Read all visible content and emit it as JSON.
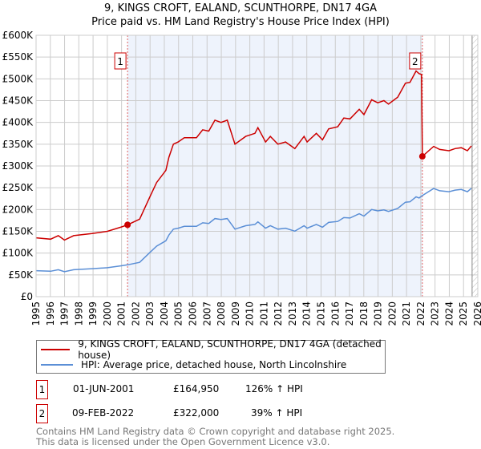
{
  "chart_data": {
    "type": "line",
    "title": "9, KINGS CROFT, EALAND, SCUNTHORPE, DN17 4GA",
    "subtitle": "Price paid vs. HM Land Registry's House Price Index (HPI)",
    "xlim": [
      1995,
      2026
    ],
    "ylim": [
      0,
      600000
    ],
    "x_ticks": [
      "1995",
      "1996",
      "1997",
      "1998",
      "1999",
      "2000",
      "2001",
      "2002",
      "2003",
      "2004",
      "2005",
      "2006",
      "2007",
      "2008",
      "2009",
      "2010",
      "2011",
      "2012",
      "2013",
      "2014",
      "2015",
      "2016",
      "2017",
      "2018",
      "2019",
      "2020",
      "2021",
      "2022",
      "2023",
      "2024",
      "2025",
      "2026"
    ],
    "y_ticks": [
      {
        "v": 0,
        "l": "£0"
      },
      {
        "v": 50000,
        "l": "£50K"
      },
      {
        "v": 100000,
        "l": "£100K"
      },
      {
        "v": 150000,
        "l": "£150K"
      },
      {
        "v": 200000,
        "l": "£200K"
      },
      {
        "v": 250000,
        "l": "£250K"
      },
      {
        "v": 300000,
        "l": "£300K"
      },
      {
        "v": 350000,
        "l": "£350K"
      },
      {
        "v": 400000,
        "l": "£400K"
      },
      {
        "v": 450000,
        "l": "£450K"
      },
      {
        "v": 500000,
        "l": "£500K"
      },
      {
        "v": 550000,
        "l": "£550K"
      },
      {
        "v": 600000,
        "l": "£600K"
      }
    ],
    "grid": true,
    "series": [
      {
        "name": "9, KINGS CROFT, EALAND, SCUNTHORPE, DN17 4GA (detached house)",
        "color": "#cc0000",
        "x": [
          1995.0,
          1996.02,
          1996.56,
          1996.99,
          1997.64,
          1998.93,
          2000.01,
          2000.98,
          2001.42,
          2002.27,
          2003.03,
          2003.46,
          2004.11,
          2004.32,
          2004.64,
          2004.97,
          2005.4,
          2006.26,
          2006.69,
          2007.12,
          2007.55,
          2007.98,
          2008.42,
          2008.96,
          2009.71,
          2010.36,
          2010.57,
          2011.11,
          2011.44,
          2011.97,
          2012.51,
          2013.16,
          2013.81,
          2014.02,
          2014.67,
          2015.1,
          2015.53,
          2016.17,
          2016.6,
          2017.03,
          2017.68,
          2018.01,
          2018.55,
          2018.98,
          2019.41,
          2019.73,
          2020.38,
          2020.92,
          2021.24,
          2021.67,
          2021.88,
          2022.05,
          2022.11,
          2022.9,
          2023.33,
          2023.98,
          2024.41,
          2024.84,
          2025.27,
          2025.55
        ],
        "y": [
          135,
          132,
          140,
          130,
          140,
          145,
          150,
          160,
          165,
          178,
          232,
          262,
          290,
          320,
          350,
          355,
          365,
          365,
          383,
          380,
          405,
          400,
          405,
          350,
          368,
          375,
          388,
          355,
          368,
          350,
          355,
          340,
          368,
          355,
          375,
          360,
          385,
          390,
          410,
          408,
          430,
          418,
          452,
          445,
          450,
          442,
          458,
          490,
          492,
          518,
          512,
          510,
          322,
          345,
          338,
          335,
          340,
          342,
          335,
          346
        ]
      },
      {
        "name": "HPI: Average price, detached house, North Lincolnshire",
        "color": "#5b8fd6",
        "x": [
          1995.0,
          1996.02,
          1996.56,
          1996.99,
          1997.64,
          1998.93,
          2000.01,
          2000.98,
          2001.42,
          2002.27,
          2003.03,
          2003.46,
          2004.11,
          2004.32,
          2004.64,
          2004.97,
          2005.4,
          2006.26,
          2006.69,
          2007.12,
          2007.55,
          2007.98,
          2008.42,
          2008.96,
          2009.71,
          2010.36,
          2010.57,
          2011.11,
          2011.44,
          2011.97,
          2012.51,
          2013.16,
          2013.81,
          2014.02,
          2014.67,
          2015.1,
          2015.53,
          2016.17,
          2016.6,
          2017.03,
          2017.68,
          2018.01,
          2018.55,
          2018.98,
          2019.41,
          2019.73,
          2020.38,
          2020.92,
          2021.24,
          2021.67,
          2021.88,
          2022.11,
          2022.9,
          2023.33,
          2023.98,
          2024.41,
          2024.84,
          2025.27,
          2025.55
        ],
        "y": [
          59.7,
          58.4,
          61.9,
          57.5,
          61.9,
          64.2,
          66.4,
          70.8,
          73.0,
          78.8,
          102.7,
          115.9,
          128.3,
          141.6,
          154.9,
          157.1,
          161.5,
          161.5,
          169.5,
          168.1,
          179.2,
          177.0,
          179.2,
          154.9,
          162.8,
          165.9,
          171.7,
          157.1,
          162.8,
          154.9,
          157.1,
          150.4,
          162.8,
          157.1,
          165.9,
          159.3,
          170.4,
          172.6,
          181.4,
          180.5,
          190.3,
          185.0,
          200.0,
          196.9,
          199.1,
          195.6,
          202.7,
          216.8,
          217.7,
          229.2,
          226.5,
          232,
          248.2,
          243.2,
          241.0,
          244.6,
          246.0,
          241.0,
          248.9
        ]
      }
    ],
    "y_units": "thousands GBP",
    "sales": [
      {
        "id": "1",
        "x": 2001.42,
        "y": 164.95
      },
      {
        "id": "2",
        "x": 2022.11,
        "y": 322
      }
    ],
    "hatch_from": 2025.6
  },
  "legend": {
    "property": "9, KINGS CROFT, EALAND, SCUNTHORPE, DN17 4GA (detached house)",
    "hpi": "HPI: Average price, detached house, North Lincolnshire"
  },
  "transactions": [
    {
      "num": "1",
      "date": "01-JUN-2001",
      "price": "£164,950",
      "hpi": "126% ↑ HPI"
    },
    {
      "num": "2",
      "date": "09-FEB-2022",
      "price": "£322,000",
      "hpi": "39% ↑ HPI"
    }
  ],
  "footer": {
    "line1": "Contains HM Land Registry data © Crown copyright and database right 2025.",
    "line2": "This data is licensed under the Open Government Licence v3.0."
  },
  "colors": {
    "property": "#cc0000",
    "hpi": "#5b8fd6",
    "shade": "#eef3fc"
  }
}
